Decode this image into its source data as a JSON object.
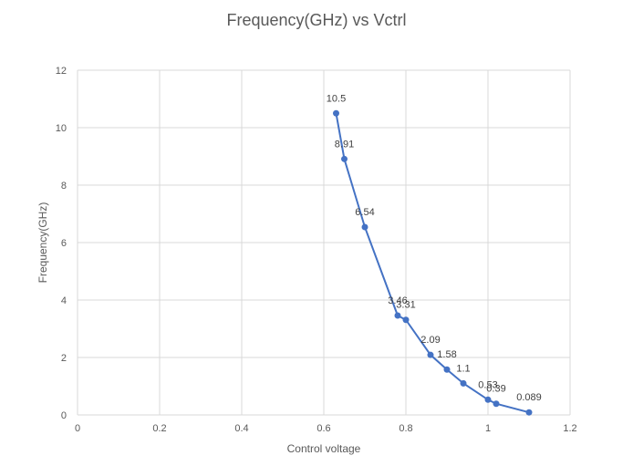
{
  "chart_data": {
    "type": "scatter",
    "title": "Frequency(GHz) vs Vctrl",
    "xlabel": "Control voltage",
    "ylabel": "Frequency(GHz)",
    "xlim": [
      0,
      1.2
    ],
    "ylim": [
      0,
      12
    ],
    "x_ticks": [
      "0",
      "0.2",
      "0.4",
      "0.6",
      "0.8",
      "1",
      "1.2"
    ],
    "y_ticks": [
      "0",
      "2",
      "4",
      "6",
      "8",
      "10",
      "12"
    ],
    "grid": true,
    "series_color": "#4472C4",
    "series": [
      {
        "x": [
          0.63,
          0.65,
          0.7,
          0.78,
          0.8,
          0.86,
          0.9,
          0.94,
          1.0,
          1.02,
          1.1
        ],
        "y": [
          10.5,
          8.91,
          6.54,
          3.46,
          3.31,
          2.09,
          1.58,
          1.1,
          0.53,
          0.39,
          0.089
        ],
        "labels": [
          "10.5",
          "8.91",
          "6.54",
          "3.46",
          "3.31",
          "2.09",
          "1.58",
          "1.1",
          "0.53",
          "0.39",
          "0.089"
        ]
      }
    ]
  }
}
